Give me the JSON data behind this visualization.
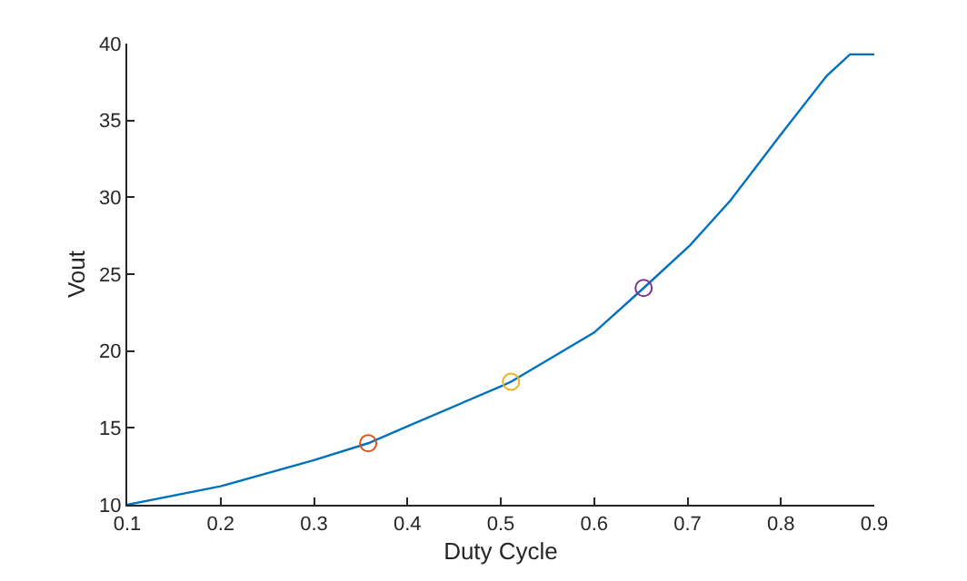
{
  "chart_data": {
    "type": "line",
    "xlabel": "Duty Cycle",
    "ylabel": "Vout",
    "xlim": [
      0.1,
      0.9
    ],
    "ylim": [
      10,
      40
    ],
    "xticks": [
      0.1,
      0.2,
      0.3,
      0.4,
      0.5,
      0.6,
      0.7,
      0.8,
      0.9
    ],
    "yticks": [
      10,
      15,
      20,
      25,
      30,
      35,
      40
    ],
    "series": [
      {
        "color": "#0072bd",
        "marker": "none",
        "x": [
          0.1,
          0.2,
          0.3,
          0.358,
          0.4,
          0.5,
          0.511,
          0.6,
          0.653,
          0.703,
          0.746,
          0.8,
          0.849,
          0.874,
          0.9
        ],
        "values": [
          10,
          11.2,
          12.9,
          14,
          15.1,
          17.7,
          18,
          21.2,
          24.1,
          26.9,
          29.8,
          34.1,
          37.9,
          39.3,
          39.3
        ]
      },
      {
        "type": "scatter",
        "color": "#d95319",
        "marker": "circle",
        "x": [
          0.358
        ],
        "values": [
          14
        ]
      },
      {
        "type": "scatter",
        "color": "#edb120",
        "marker": "circle",
        "x": [
          0.511
        ],
        "values": [
          18
        ]
      },
      {
        "type": "scatter",
        "color": "#7e2f8e",
        "marker": "circle",
        "x": [
          0.653
        ],
        "values": [
          24.1
        ]
      }
    ]
  }
}
